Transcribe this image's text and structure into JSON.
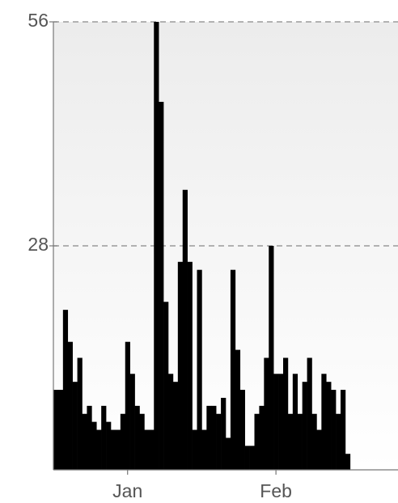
{
  "chart_data": {
    "type": "bar",
    "categories": [
      null,
      null,
      null,
      null,
      null,
      null,
      null,
      null,
      null,
      null,
      null,
      null,
      null,
      null,
      null,
      "Jan",
      null,
      null,
      null,
      null,
      null,
      null,
      null,
      null,
      null,
      null,
      null,
      null,
      null,
      null,
      null,
      null,
      null,
      null,
      null,
      null,
      null,
      null,
      null,
      null,
      null,
      null,
      null,
      null,
      null,
      null,
      "Feb",
      null,
      null,
      null,
      null,
      null,
      null,
      null,
      null,
      null,
      null,
      null,
      null,
      null,
      null,
      null,
      null,
      null,
      null,
      null,
      null,
      null,
      null,
      null,
      null,
      null
    ],
    "values": [
      10,
      10,
      20,
      16,
      11,
      14,
      7,
      8,
      6,
      5,
      8,
      6,
      5,
      5,
      7,
      16,
      12,
      8,
      7,
      5,
      5,
      56,
      46,
      21,
      12,
      11,
      26,
      35,
      26,
      5,
      25,
      5,
      8,
      8,
      7,
      9,
      4,
      25,
      15,
      10,
      3,
      3,
      7,
      8,
      14,
      28,
      12,
      12,
      14,
      7,
      12,
      7,
      11,
      14,
      7,
      5,
      12,
      11,
      10,
      7,
      10,
      2,
      0,
      0,
      0,
      0,
      0,
      0,
      0,
      0,
      0,
      0
    ],
    "color": "#000000",
    "ylim": [
      0,
      56
    ],
    "yticks": [
      28,
      56
    ],
    "grid": true
  }
}
